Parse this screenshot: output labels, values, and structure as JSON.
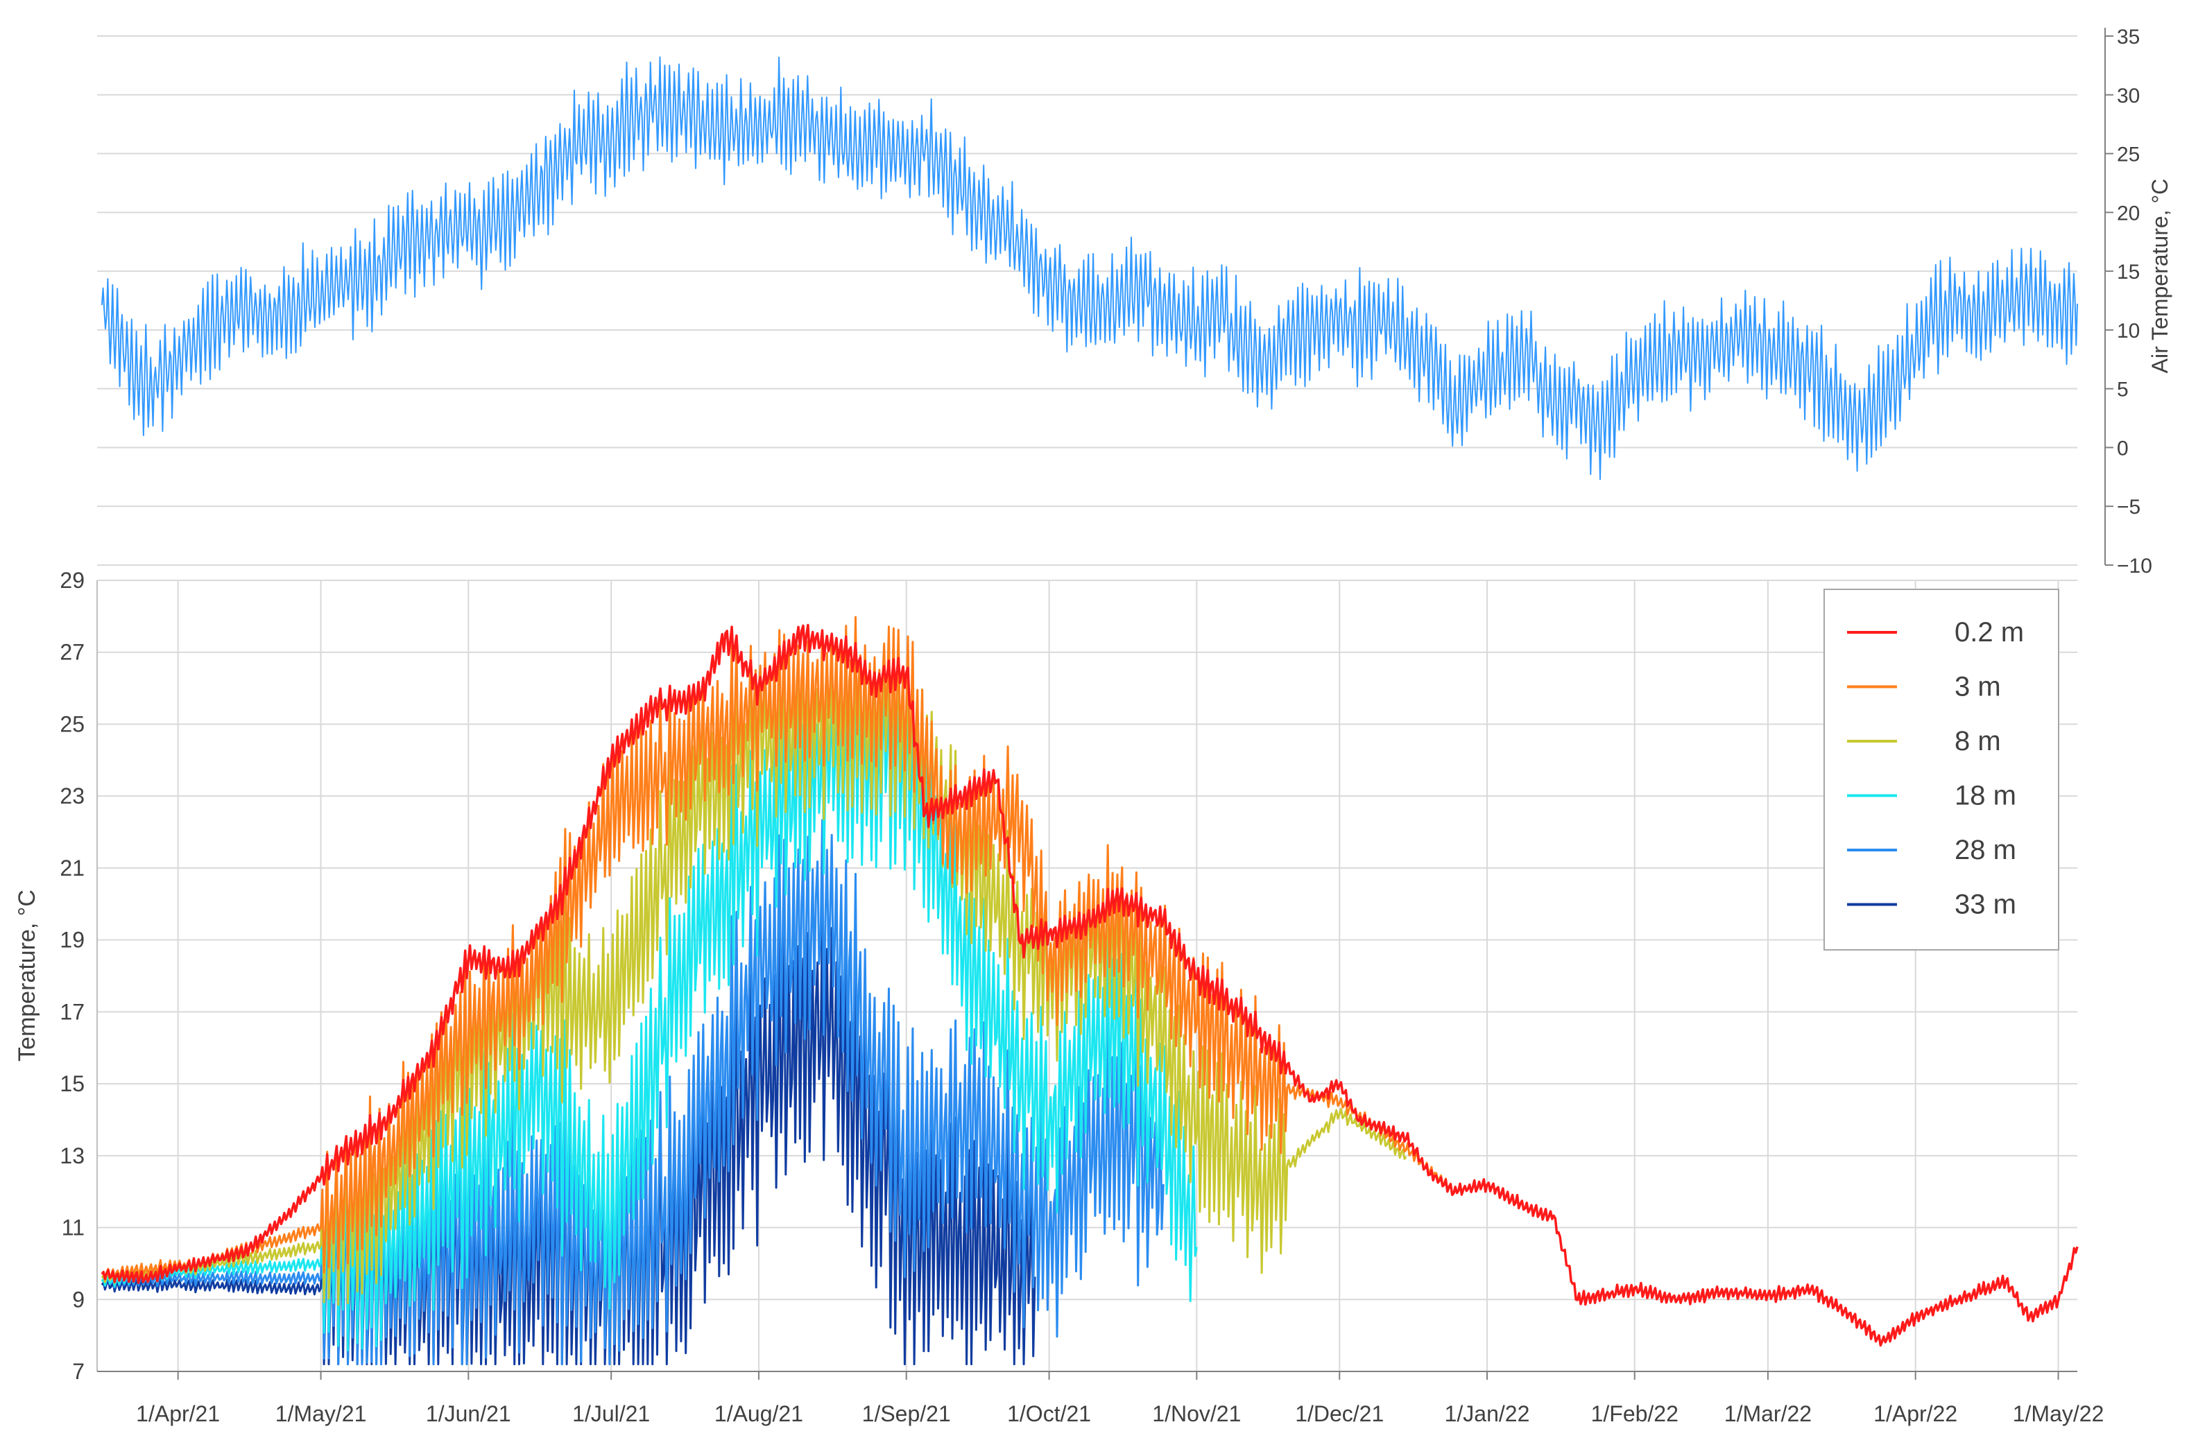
{
  "chart_data": [
    {
      "type": "line",
      "title": "",
      "ylabel": "Air Temperature, °C",
      "ylim": [
        -10,
        35
      ],
      "y_ticks": [
        "35",
        "30",
        "25",
        "20",
        "15",
        "10",
        "5",
        "0",
        "−5",
        "−10"
      ],
      "y_tick_values": [
        35,
        30,
        25,
        20,
        15,
        10,
        5,
        0,
        -5,
        -10
      ],
      "axis_side": "right",
      "grid": "horizontal",
      "line_color": "#3399ff",
      "series": [
        {
          "x": [
            "2021-03-16",
            "2021-03-19",
            "2021-03-23",
            "2021-03-27",
            "2021-04-01",
            "2021-04-05",
            "2021-04-10",
            "2021-04-15",
            "2021-04-20",
            "2021-04-25",
            "2021-05-01",
            "2021-05-05",
            "2021-05-10",
            "2021-05-15",
            "2021-05-20",
            "2021-05-25",
            "2021-06-01",
            "2021-06-05",
            "2021-06-10",
            "2021-06-15",
            "2021-06-20",
            "2021-06-25",
            "2021-07-01",
            "2021-07-05",
            "2021-07-10",
            "2021-07-15",
            "2021-07-20",
            "2021-07-25",
            "2021-08-01",
            "2021-08-05",
            "2021-08-10",
            "2021-08-15",
            "2021-08-20",
            "2021-08-25",
            "2021-09-01",
            "2021-09-05",
            "2021-09-10",
            "2021-09-15",
            "2021-09-20",
            "2021-09-25",
            "2021-10-01",
            "2021-10-05",
            "2021-10-10",
            "2021-10-15",
            "2021-10-20",
            "2021-10-25",
            "2021-11-01",
            "2021-11-05",
            "2021-11-10",
            "2021-11-15",
            "2021-11-20",
            "2021-11-25",
            "2021-12-01",
            "2021-12-05",
            "2021-12-10",
            "2021-12-15",
            "2021-12-20",
            "2021-12-25",
            "2022-01-01",
            "2022-01-05",
            "2022-01-10",
            "2022-01-15",
            "2022-01-20",
            "2022-01-25",
            "2022-02-01",
            "2022-02-05",
            "2022-02-10",
            "2022-02-15",
            "2022-02-20",
            "2022-02-25",
            "2022-03-01",
            "2022-03-05",
            "2022-03-10",
            "2022-03-15",
            "2022-03-20",
            "2022-03-25",
            "2022-04-01",
            "2022-04-05",
            "2022-04-10",
            "2022-04-15",
            "2022-04-20",
            "2022-04-25",
            "2022-05-01",
            "2022-05-05"
          ],
          "values": [
            12,
            10,
            6,
            5,
            8,
            9,
            11,
            12,
            11,
            12,
            13,
            14,
            14,
            16,
            18,
            18,
            19,
            18,
            20,
            22,
            24,
            26,
            26,
            28,
            29,
            29,
            28,
            27,
            27,
            28,
            28,
            27,
            25,
            26,
            25,
            26,
            23,
            21,
            19,
            17,
            14,
            13,
            12,
            12,
            14,
            12,
            10,
            12,
            9,
            7,
            9,
            10,
            11,
            10,
            11,
            9,
            8,
            3,
            6,
            7,
            8,
            3,
            4,
            2,
            6,
            7,
            8,
            8,
            9,
            10,
            8,
            8,
            7,
            4,
            2,
            4,
            8,
            11,
            12,
            11,
            12,
            13,
            12,
            12
          ]
        }
      ]
    },
    {
      "type": "line",
      "title": "",
      "ylabel": "Temperature, °C",
      "xlabel": "",
      "ylim": [
        7,
        29
      ],
      "y_ticks": [
        "29",
        "27",
        "25",
        "23",
        "21",
        "19",
        "17",
        "15",
        "13",
        "11",
        "9",
        "7"
      ],
      "y_tick_values": [
        29,
        27,
        25,
        23,
        21,
        19,
        17,
        15,
        13,
        11,
        9,
        7
      ],
      "x_range": [
        "2021-03-15",
        "2022-05-05"
      ],
      "x_ticks": [
        "1/Apr/21",
        "1/May/21",
        "1/Jun/21",
        "1/Jul/21",
        "1/Aug/21",
        "1/Sep/21",
        "1/Oct/21",
        "1/Nov/21",
        "1/Dec/21",
        "1/Jan/22",
        "1/Feb/22",
        "1/Mar/22",
        "1/Apr/22",
        "1/May/22"
      ],
      "x_tick_dates": [
        "2021-04-01",
        "2021-05-01",
        "2021-06-01",
        "2021-07-01",
        "2021-08-01",
        "2021-09-01",
        "2021-10-01",
        "2021-11-01",
        "2021-12-01",
        "2022-01-01",
        "2022-02-01",
        "2022-03-01",
        "2022-04-01",
        "2022-05-01"
      ],
      "grid": "both",
      "legend_position": "top-right",
      "series": [
        {
          "name": "0.2 m",
          "color": "#ff1a1a",
          "x": [
            "2021-03-16",
            "2021-03-25",
            "2021-04-05",
            "2021-04-15",
            "2021-04-25",
            "2021-05-05",
            "2021-05-15",
            "2021-05-25",
            "2021-06-01",
            "2021-06-10",
            "2021-06-20",
            "2021-07-01",
            "2021-07-10",
            "2021-07-20",
            "2021-07-25",
            "2021-08-01",
            "2021-08-10",
            "2021-08-20",
            "2021-08-25",
            "2021-09-01",
            "2021-09-05",
            "2021-09-10",
            "2021-09-20",
            "2021-09-25",
            "2021-10-01",
            "2021-10-10",
            "2021-10-15",
            "2021-10-25",
            "2021-11-01",
            "2021-11-10",
            "2021-11-20",
            "2021-11-25",
            "2021-12-01",
            "2021-12-05",
            "2021-12-15",
            "2021-12-20",
            "2021-12-25",
            "2022-01-01",
            "2022-01-10",
            "2022-01-15",
            "2022-01-20",
            "2022-02-01",
            "2022-02-10",
            "2022-02-20",
            "2022-03-01",
            "2022-03-10",
            "2022-03-20",
            "2022-03-25",
            "2022-04-01",
            "2022-04-10",
            "2022-04-20",
            "2022-04-25",
            "2022-05-01",
            "2022-05-05"
          ],
          "values": [
            9.7,
            9.6,
            10.0,
            10.3,
            11.5,
            13.0,
            14.0,
            16.0,
            18.5,
            18.2,
            20.0,
            24.0,
            25.5,
            25.8,
            27.5,
            26.0,
            27.5,
            27.0,
            26.2,
            26.5,
            22.5,
            22.8,
            23.5,
            19.0,
            19.2,
            19.5,
            20.2,
            19.5,
            18.0,
            17.0,
            15.5,
            14.5,
            15.0,
            14.0,
            13.5,
            12.5,
            12.0,
            12.2,
            11.5,
            11.3,
            9.0,
            9.3,
            9.0,
            9.2,
            9.1,
            9.3,
            8.4,
            7.8,
            8.5,
            9.0,
            9.5,
            8.5,
            9.0,
            10.5
          ]
        },
        {
          "name": "3 m",
          "color": "#ff7f1a",
          "x": [
            "2021-03-16",
            "2021-04-05",
            "2021-05-01",
            "2021-05-15",
            "2021-06-01",
            "2021-06-15",
            "2021-07-01",
            "2021-07-15",
            "2021-08-01",
            "2021-08-15",
            "2021-09-01",
            "2021-09-10",
            "2021-09-25",
            "2021-10-01",
            "2021-10-15",
            "2021-11-01",
            "2021-11-15",
            "2021-12-01",
            "2021-12-15",
            "2021-12-25"
          ],
          "values": [
            9.7,
            10.0,
            11.0,
            13.0,
            16.5,
            18.0,
            22.5,
            24.0,
            25.5,
            26.0,
            25.8,
            22.0,
            22.5,
            18.5,
            19.8,
            17.0,
            15.0,
            14.5,
            13.2,
            12.0
          ]
        },
        {
          "name": "8 m",
          "color": "#c8c832",
          "x": [
            "2021-03-16",
            "2021-04-05",
            "2021-05-01",
            "2021-05-15",
            "2021-06-01",
            "2021-06-15",
            "2021-07-01",
            "2021-07-15",
            "2021-08-01",
            "2021-08-15",
            "2021-09-01",
            "2021-09-15",
            "2021-10-01",
            "2021-10-15",
            "2021-11-01",
            "2021-11-15",
            "2021-12-01",
            "2021-12-15"
          ],
          "values": [
            9.6,
            9.9,
            10.5,
            12.0,
            15.5,
            17.5,
            17.0,
            22.0,
            24.5,
            25.0,
            25.0,
            21.0,
            18.0,
            19.0,
            14.0,
            12.0,
            14.2,
            13.0
          ]
        },
        {
          "name": "18 m",
          "color": "#1ae6f0",
          "x": [
            "2021-03-16",
            "2021-04-05",
            "2021-05-01",
            "2021-05-15",
            "2021-06-01",
            "2021-06-15",
            "2021-07-01",
            "2021-07-15",
            "2021-08-01",
            "2021-08-15",
            "2021-09-01",
            "2021-09-15",
            "2021-10-01",
            "2021-10-15",
            "2021-11-01"
          ],
          "values": [
            9.5,
            9.8,
            10.0,
            10.5,
            12.5,
            15.0,
            11.0,
            18.0,
            22.0,
            24.0,
            24.0,
            18.0,
            14.0,
            17.0,
            11.0
          ]
        },
        {
          "name": "28 m",
          "color": "#2b8cf0",
          "x": [
            "2021-03-16",
            "2021-04-05",
            "2021-05-01",
            "2021-05-15",
            "2021-06-01",
            "2021-06-15",
            "2021-07-01",
            "2021-07-15",
            "2021-08-01",
            "2021-08-15",
            "2021-09-01",
            "2021-09-15",
            "2021-10-01",
            "2021-10-15",
            "2021-10-25"
          ],
          "values": [
            9.5,
            9.6,
            9.6,
            9.8,
            10.5,
            11.5,
            9.8,
            12.0,
            18.0,
            20.0,
            13.0,
            14.0,
            11.0,
            14.0,
            12.0
          ]
        },
        {
          "name": "33 m",
          "color": "#103ca0",
          "x": [
            "2021-03-16",
            "2021-04-05",
            "2021-05-01",
            "2021-05-15",
            "2021-06-01",
            "2021-06-15",
            "2021-07-01",
            "2021-07-15",
            "2021-08-01",
            "2021-08-15",
            "2021-09-01",
            "2021-09-15",
            "2021-09-28"
          ],
          "values": [
            9.4,
            9.4,
            9.3,
            9.3,
            9.6,
            10.0,
            9.4,
            10.5,
            15.0,
            17.0,
            11.0,
            10.5,
            10.0
          ]
        }
      ]
    }
  ]
}
